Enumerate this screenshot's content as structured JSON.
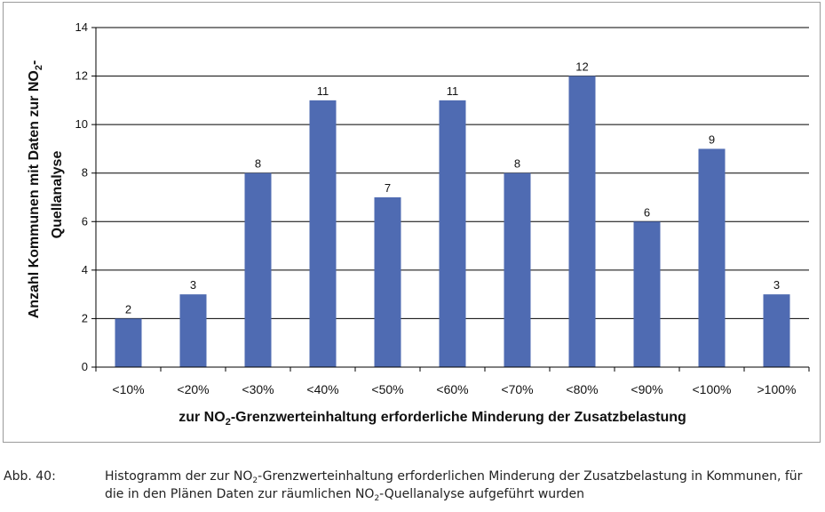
{
  "chart_data": {
    "type": "bar",
    "categories": [
      "<10%",
      "<20%",
      "<30%",
      "<40%",
      "<50%",
      "<60%",
      "<70%",
      "<80%",
      "<90%",
      "<100%",
      ">100%"
    ],
    "values": [
      2,
      3,
      8,
      11,
      7,
      11,
      8,
      12,
      6,
      9,
      3
    ],
    "ylim": [
      0,
      14
    ],
    "yticks": [
      0,
      2,
      4,
      6,
      8,
      10,
      12,
      14
    ],
    "grid": true,
    "bar_color": "#4F6BB2",
    "xlabel": {
      "before": "zur NO",
      "sub": "2",
      "after": "-Grenzwerteinhaltung erforderliche Minderung der Zusatzbelastung"
    },
    "ylabel": {
      "line1_before": "Anzahl Kommunen mit Daten zur NO",
      "line1_sub": "2",
      "line1_after": "-",
      "line2": "Quellanalyse"
    }
  },
  "caption": {
    "label": "Abb. 40:",
    "part1": "Histogramm der zur NO",
    "sub1": "2",
    "part2": "-Grenzwerteinhaltung erforderlichen Minderung der Zusatzbelastung in Kommunen, für die in den Plänen Daten zur räumlichen NO",
    "sub2": "2",
    "part3": "-Quellanalyse aufgeführt wurden"
  }
}
